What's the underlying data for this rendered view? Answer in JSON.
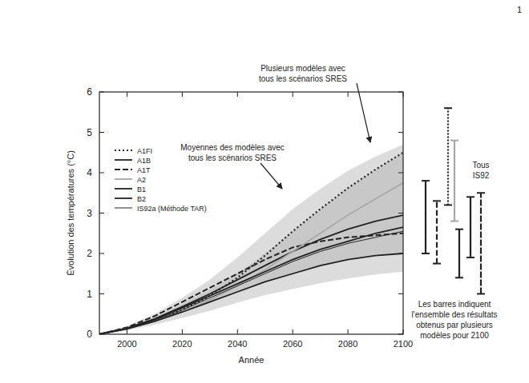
{
  "chart_data": {
    "type": "line",
    "x_label": "Année",
    "y_label": "Évolution des températures (°C)",
    "x": [
      1990,
      2000,
      2010,
      2020,
      2030,
      2040,
      2050,
      2060,
      2070,
      2080,
      2090,
      2100
    ],
    "xlim": [
      1990,
      2100
    ],
    "xticks": [
      2000,
      2020,
      2040,
      2060,
      2080,
      2100
    ],
    "ylim": [
      0,
      6
    ],
    "yticks": [
      0,
      1,
      2,
      3,
      4,
      5,
      6
    ],
    "grid": false,
    "legend": "upper left",
    "bands": [
      {
        "name": "Plusieurs modèles avec\ntous les scénarios SRES",
        "color": "#dcdcdc",
        "low": [
          0,
          0.1,
          0.24,
          0.4,
          0.58,
          0.78,
          0.97,
          1.12,
          1.26,
          1.38,
          1.48,
          1.55
        ],
        "high": [
          0,
          0.2,
          0.5,
          0.9,
          1.35,
          1.9,
          2.5,
          3.1,
          3.6,
          4.05,
          4.4,
          4.7
        ]
      },
      {
        "name": "Moyennes des modèles avec\ntous les scénarios SRES",
        "color": "#c8c8c8",
        "low": [
          0,
          0.13,
          0.31,
          0.53,
          0.78,
          1.03,
          1.28,
          1.48,
          1.68,
          1.84,
          1.94,
          2.0
        ],
        "high": [
          0,
          0.17,
          0.42,
          0.75,
          1.1,
          1.5,
          2.0,
          2.55,
          3.1,
          3.62,
          4.08,
          4.5
        ]
      }
    ],
    "series": [
      {
        "name": "A1FI",
        "color": "#222222",
        "line_style": "dotted",
        "values": [
          0,
          0.15,
          0.33,
          0.6,
          0.95,
          1.4,
          1.95,
          2.55,
          3.1,
          3.62,
          4.08,
          4.5
        ],
        "range_2100": [
          3.2,
          5.6
        ]
      },
      {
        "name": "A1B",
        "color": "#222222",
        "line_style": "solid",
        "values": [
          0,
          0.15,
          0.38,
          0.68,
          1.0,
          1.35,
          1.7,
          2.05,
          2.35,
          2.6,
          2.8,
          2.95
        ],
        "range_2100": [
          2.0,
          3.8
        ]
      },
      {
        "name": "A1T",
        "color": "#222222",
        "line_style": "dashed",
        "values": [
          0,
          0.17,
          0.45,
          0.8,
          1.15,
          1.5,
          1.85,
          2.15,
          2.3,
          2.4,
          2.45,
          2.5
        ],
        "range_2100": [
          1.75,
          3.3
        ]
      },
      {
        "name": "A2",
        "color": "#a8a8a8",
        "line_style": "solid",
        "values": [
          0,
          0.14,
          0.33,
          0.55,
          0.85,
          1.2,
          1.6,
          2.05,
          2.5,
          2.95,
          3.35,
          3.75
        ],
        "range_2100": [
          2.8,
          4.8
        ]
      },
      {
        "name": "B1",
        "color": "#222222",
        "line_style": "solid",
        "values": [
          0,
          0.13,
          0.32,
          0.55,
          0.8,
          1.05,
          1.3,
          1.5,
          1.7,
          1.85,
          1.95,
          2.0
        ],
        "range_2100": [
          1.4,
          2.6
        ]
      },
      {
        "name": "B2",
        "color": "#222222",
        "line_style": "solid",
        "values": [
          0,
          0.14,
          0.37,
          0.65,
          0.95,
          1.25,
          1.55,
          1.85,
          2.1,
          2.3,
          2.5,
          2.65
        ],
        "range_2100": [
          1.9,
          3.4
        ]
      },
      {
        "name": "IS92a (Méthode TAR)",
        "color": "#222222",
        "line_style": "thin",
        "values": [
          0,
          0.14,
          0.35,
          0.6,
          0.9,
          1.2,
          1.5,
          1.8,
          2.05,
          2.25,
          2.4,
          2.55
        ],
        "range_2100": [
          1.0,
          3.5
        ]
      }
    ],
    "annotations": [
      "Tous\nIS92",
      "Les barres indiquent\nl'ensemble des résultats\nobtenus par plusieurs\nmodèles pour 2100",
      "1"
    ]
  }
}
